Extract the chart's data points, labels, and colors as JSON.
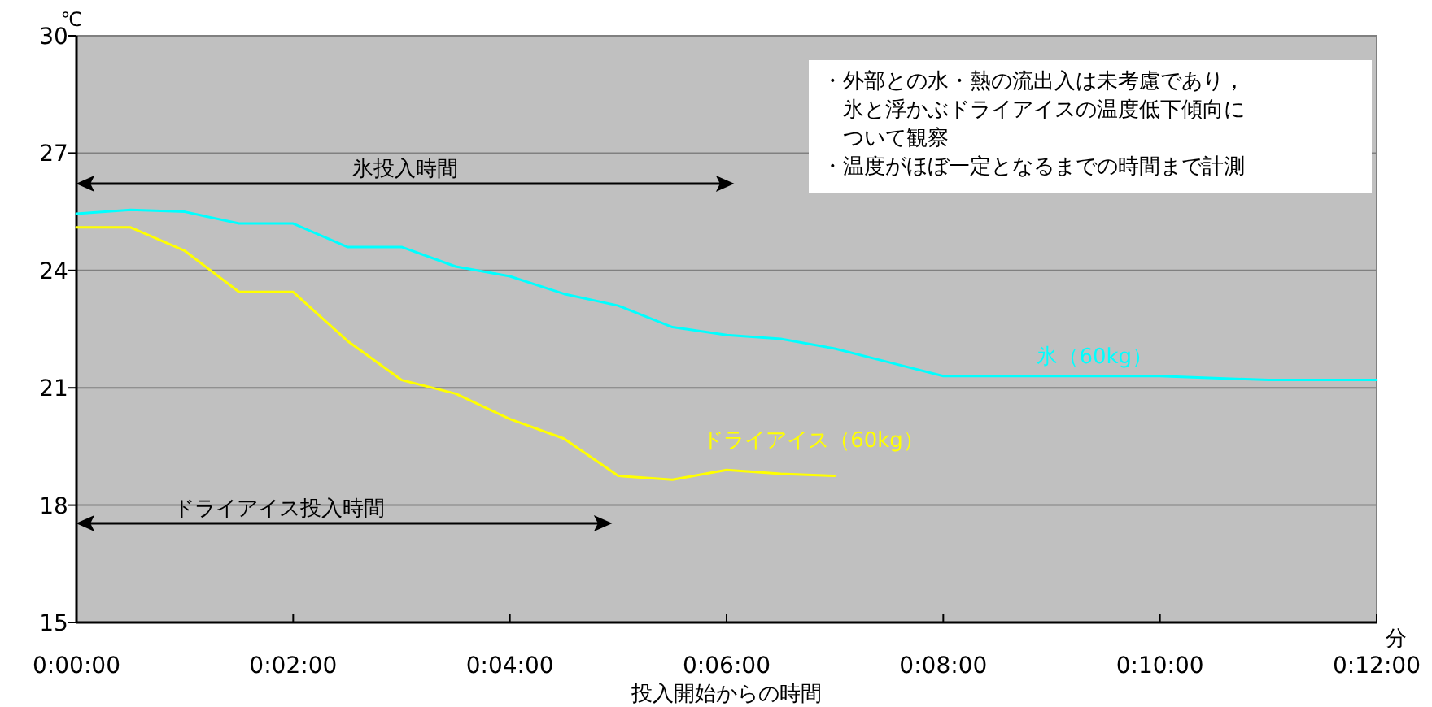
{
  "chart_data": {
    "type": "line",
    "ylabel": "℃",
    "xlabel": "投入開始からの時間",
    "x": [
      0,
      0.5,
      1,
      1.5,
      2,
      2.5,
      3,
      3.5,
      4,
      4.5,
      5,
      5.5,
      6,
      6.5,
      7,
      7.5,
      8,
      8.5,
      9,
      9.5,
      10,
      10.5,
      11,
      11.5,
      12
    ],
    "series": [
      {
        "name": "氷（60kg）",
        "color": "#00ffff",
        "values": [
          25.45,
          25.55,
          25.5,
          25.2,
          25.2,
          24.6,
          24.6,
          24.1,
          23.85,
          23.4,
          23.1,
          22.55,
          22.35,
          22.25,
          22.0,
          21.65,
          21.3,
          21.3,
          21.3,
          21.3,
          21.3,
          21.25,
          21.2,
          21.2,
          21.2
        ]
      },
      {
        "name": "ドライアイス（60kg）",
        "color": "#ffff00",
        "values": [
          25.1,
          25.1,
          24.5,
          23.45,
          23.45,
          22.2,
          21.2,
          20.85,
          20.2,
          19.7,
          18.75,
          18.65,
          18.9,
          18.8,
          18.75,
          null,
          null,
          null,
          null,
          null,
          null,
          null,
          null,
          null,
          null
        ]
      }
    ],
    "xlim": [
      0,
      12
    ],
    "xticks": [
      {
        "value": 0,
        "label": "0:00:00"
      },
      {
        "value": 2,
        "label": "0:02:00"
      },
      {
        "value": 4,
        "label": "0:04:00"
      },
      {
        "value": 6,
        "label": "0:06:00"
      },
      {
        "value": 8,
        "label": "0:08:00"
      },
      {
        "value": 10,
        "label": "0:10:00"
      },
      {
        "value": 12,
        "label": "0:12:00"
      }
    ],
    "ylim": [
      15,
      30
    ],
    "yticks": [
      15,
      18,
      21,
      24,
      27,
      30
    ],
    "grid": "y",
    "annotations": [
      "氷投入時間",
      "ドライアイス投入時間",
      "・外部との水・熱の流出入は未考慮であり，氷と浮かぶドライアイスの温度低下傾向について観察",
      "・温度がほぼ一定となるまでの時間まで計測",
      "分"
    ]
  }
}
